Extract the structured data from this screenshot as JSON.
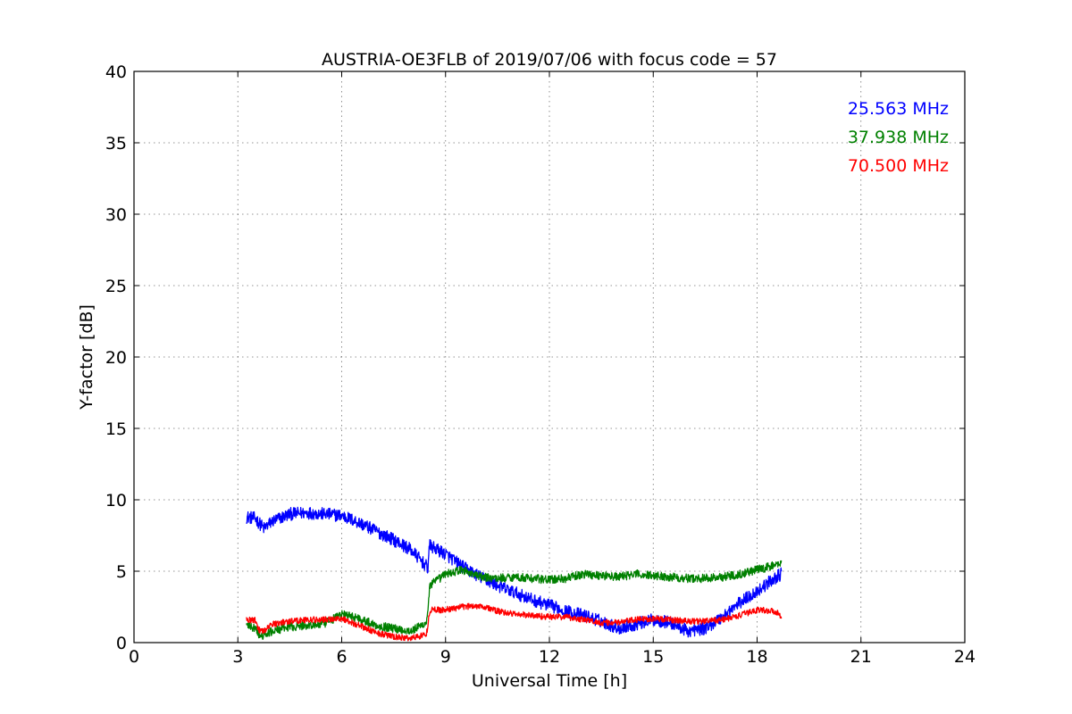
{
  "chart_data": {
    "type": "line",
    "title": "AUSTRIA-OE3FLB of 2019/07/06 with focus code = 57",
    "xlabel": "Universal Time [h]",
    "ylabel": "Y-factor [dB]",
    "xlim": [
      0,
      24
    ],
    "ylim": [
      0,
      40
    ],
    "xticks": [
      0,
      3,
      6,
      9,
      12,
      15,
      18,
      21,
      24
    ],
    "yticks": [
      0,
      5,
      10,
      15,
      20,
      25,
      30,
      35,
      40
    ],
    "grid": true,
    "legend_position": "top-right",
    "series": [
      {
        "name": "25.563 MHz",
        "color": "#0000ff",
        "noise": 0.45,
        "x": [
          3.25,
          3.5,
          3.75,
          4.0,
          4.5,
          5.0,
          5.5,
          6.0,
          6.5,
          7.0,
          7.5,
          8.0,
          8.5,
          8.52,
          9.0,
          9.5,
          10.0,
          10.5,
          11.0,
          11.5,
          12.0,
          12.5,
          13.0,
          13.5,
          14.0,
          14.5,
          15.0,
          15.5,
          16.0,
          16.5,
          17.0,
          17.5,
          18.0,
          18.5,
          18.7
        ],
        "y": [
          8.8,
          8.7,
          8.0,
          8.5,
          9.0,
          9.1,
          9.0,
          8.9,
          8.4,
          7.8,
          7.2,
          6.5,
          5.2,
          6.8,
          6.2,
          5.3,
          4.6,
          4.0,
          3.5,
          3.0,
          2.6,
          2.2,
          1.9,
          1.5,
          1.0,
          1.3,
          1.6,
          1.4,
          0.8,
          1.0,
          1.8,
          2.8,
          3.6,
          4.5,
          4.8
        ]
      },
      {
        "name": "37.938 MHz",
        "color": "#008000",
        "noise": 0.3,
        "x": [
          3.25,
          3.5,
          3.65,
          4.0,
          4.5,
          5.0,
          5.5,
          6.0,
          6.5,
          7.0,
          7.5,
          8.0,
          8.45,
          8.55,
          9.0,
          9.5,
          10.0,
          10.5,
          11.0,
          11.5,
          12.0,
          12.5,
          13.0,
          13.5,
          14.0,
          14.5,
          15.0,
          15.5,
          16.0,
          16.5,
          17.0,
          17.5,
          18.0,
          18.5,
          18.7
        ],
        "y": [
          1.2,
          1.0,
          0.4,
          0.8,
          1.1,
          1.2,
          1.3,
          2.0,
          1.7,
          1.2,
          1.0,
          0.8,
          1.4,
          4.0,
          4.8,
          5.1,
          4.6,
          4.5,
          4.6,
          4.5,
          4.4,
          4.5,
          4.8,
          4.7,
          4.6,
          4.8,
          4.7,
          4.6,
          4.5,
          4.5,
          4.6,
          4.8,
          5.1,
          5.4,
          5.6
        ]
      },
      {
        "name": "70.500 MHz",
        "color": "#ff0000",
        "noise": 0.22,
        "x": [
          3.25,
          3.5,
          3.6,
          3.75,
          4.0,
          4.5,
          5.0,
          5.5,
          6.0,
          6.5,
          7.0,
          7.5,
          8.0,
          8.45,
          8.55,
          9.0,
          9.5,
          10.0,
          10.5,
          11.0,
          11.5,
          12.0,
          12.5,
          13.0,
          13.5,
          14.0,
          14.5,
          15.0,
          15.5,
          16.0,
          16.5,
          17.0,
          17.5,
          18.0,
          18.5,
          18.7
        ],
        "y": [
          1.6,
          1.6,
          0.9,
          0.8,
          1.3,
          1.5,
          1.6,
          1.6,
          1.7,
          1.2,
          0.7,
          0.4,
          0.3,
          0.6,
          2.3,
          2.3,
          2.5,
          2.6,
          2.2,
          2.0,
          1.9,
          1.8,
          1.8,
          1.6,
          1.4,
          1.4,
          1.6,
          1.7,
          1.6,
          1.5,
          1.5,
          1.6,
          1.9,
          2.3,
          2.2,
          1.9
        ]
      }
    ]
  }
}
